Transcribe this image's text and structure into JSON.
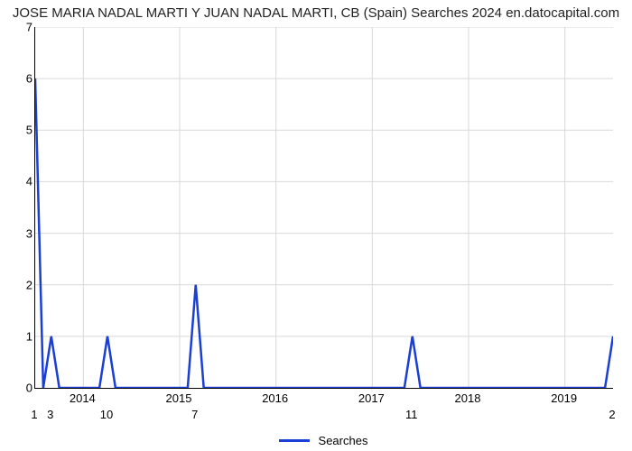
{
  "title": "JOSE MARIA NADAL MARTI Y JUAN NADAL MARTI, CB (Spain) Searches 2024 en.datocapital.com",
  "title_fontsize": 15,
  "legend_label": "Searches",
  "series_color": "#1a3fd6",
  "line_width": 2.5,
  "background_color": "#ffffff",
  "grid_color": "#d9d9d9",
  "grid_line_width": 1,
  "axis_color": "#000000",
  "y": {
    "min": 0,
    "max": 7,
    "ticks": [
      0,
      1,
      2,
      3,
      4,
      5,
      6,
      7
    ]
  },
  "x": {
    "n": 73,
    "year_labels": [
      {
        "t": 6,
        "label": "2014"
      },
      {
        "t": 18,
        "label": "2015"
      },
      {
        "t": 30,
        "label": "2016"
      },
      {
        "t": 42,
        "label": "2017"
      },
      {
        "t": 54,
        "label": "2018"
      },
      {
        "t": 66,
        "label": "2019"
      }
    ]
  },
  "peak_labels": [
    {
      "t": 0,
      "label": "1"
    },
    {
      "t": 2,
      "label": "3"
    },
    {
      "t": 9,
      "label": "10"
    },
    {
      "t": 20,
      "label": "7"
    },
    {
      "t": 47,
      "label": "11"
    },
    {
      "t": 72,
      "label": "2"
    }
  ],
  "series": [
    {
      "t": 0,
      "v": 6
    },
    {
      "t": 1,
      "v": 0
    },
    {
      "t": 2,
      "v": 1
    },
    {
      "t": 3,
      "v": 0
    },
    {
      "t": 4,
      "v": 0
    },
    {
      "t": 5,
      "v": 0
    },
    {
      "t": 6,
      "v": 0
    },
    {
      "t": 7,
      "v": 0
    },
    {
      "t": 8,
      "v": 0
    },
    {
      "t": 9,
      "v": 1
    },
    {
      "t": 10,
      "v": 0
    },
    {
      "t": 11,
      "v": 0
    },
    {
      "t": 12,
      "v": 0
    },
    {
      "t": 13,
      "v": 0
    },
    {
      "t": 14,
      "v": 0
    },
    {
      "t": 15,
      "v": 0
    },
    {
      "t": 16,
      "v": 0
    },
    {
      "t": 17,
      "v": 0
    },
    {
      "t": 18,
      "v": 0
    },
    {
      "t": 19,
      "v": 0
    },
    {
      "t": 20,
      "v": 2
    },
    {
      "t": 21,
      "v": 0
    },
    {
      "t": 22,
      "v": 0
    },
    {
      "t": 23,
      "v": 0
    },
    {
      "t": 24,
      "v": 0
    },
    {
      "t": 25,
      "v": 0
    },
    {
      "t": 26,
      "v": 0
    },
    {
      "t": 27,
      "v": 0
    },
    {
      "t": 28,
      "v": 0
    },
    {
      "t": 29,
      "v": 0
    },
    {
      "t": 30,
      "v": 0
    },
    {
      "t": 31,
      "v": 0
    },
    {
      "t": 32,
      "v": 0
    },
    {
      "t": 33,
      "v": 0
    },
    {
      "t": 34,
      "v": 0
    },
    {
      "t": 35,
      "v": 0
    },
    {
      "t": 36,
      "v": 0
    },
    {
      "t": 37,
      "v": 0
    },
    {
      "t": 38,
      "v": 0
    },
    {
      "t": 39,
      "v": 0
    },
    {
      "t": 40,
      "v": 0
    },
    {
      "t": 41,
      "v": 0
    },
    {
      "t": 42,
      "v": 0
    },
    {
      "t": 43,
      "v": 0
    },
    {
      "t": 44,
      "v": 0
    },
    {
      "t": 45,
      "v": 0
    },
    {
      "t": 46,
      "v": 0
    },
    {
      "t": 47,
      "v": 1
    },
    {
      "t": 48,
      "v": 0
    },
    {
      "t": 49,
      "v": 0
    },
    {
      "t": 50,
      "v": 0
    },
    {
      "t": 51,
      "v": 0
    },
    {
      "t": 52,
      "v": 0
    },
    {
      "t": 53,
      "v": 0
    },
    {
      "t": 54,
      "v": 0
    },
    {
      "t": 55,
      "v": 0
    },
    {
      "t": 56,
      "v": 0
    },
    {
      "t": 57,
      "v": 0
    },
    {
      "t": 58,
      "v": 0
    },
    {
      "t": 59,
      "v": 0
    },
    {
      "t": 60,
      "v": 0
    },
    {
      "t": 61,
      "v": 0
    },
    {
      "t": 62,
      "v": 0
    },
    {
      "t": 63,
      "v": 0
    },
    {
      "t": 64,
      "v": 0
    },
    {
      "t": 65,
      "v": 0
    },
    {
      "t": 66,
      "v": 0
    },
    {
      "t": 67,
      "v": 0
    },
    {
      "t": 68,
      "v": 0
    },
    {
      "t": 69,
      "v": 0
    },
    {
      "t": 70,
      "v": 0
    },
    {
      "t": 71,
      "v": 0
    },
    {
      "t": 72,
      "v": 1
    }
  ]
}
